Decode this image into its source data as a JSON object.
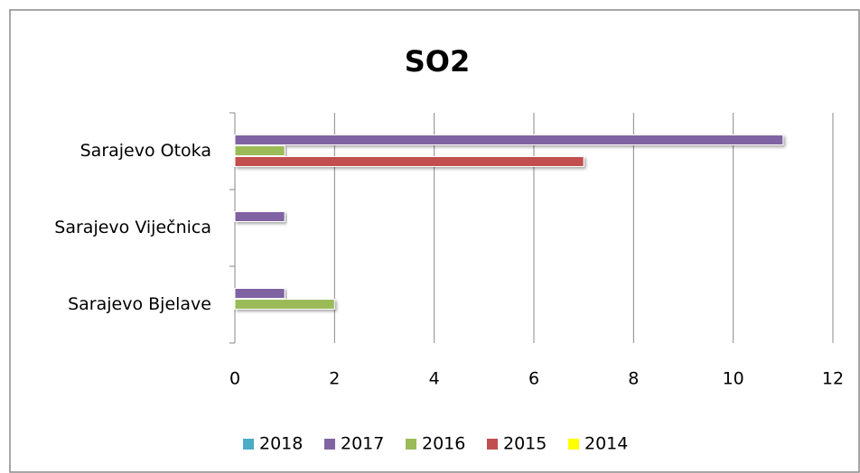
{
  "chart_data": {
    "type": "bar",
    "orientation": "horizontal",
    "title": "SO2",
    "categories": [
      "Sarajevo Otoka",
      "Sarajevo Viječnica",
      "Sarajevo Bjelave"
    ],
    "series": [
      {
        "name": "2018",
        "color": "#4bacc6",
        "values": [
          null,
          null,
          null
        ]
      },
      {
        "name": "2017",
        "color": "#8064a2",
        "values": [
          11,
          1,
          1
        ]
      },
      {
        "name": "2016",
        "color": "#9bbb59",
        "values": [
          1,
          null,
          2
        ]
      },
      {
        "name": "2015",
        "color": "#c0504d",
        "values": [
          7,
          null,
          null
        ]
      },
      {
        "name": "2014",
        "color": "#ffff00",
        "values": [
          null,
          null,
          null
        ]
      }
    ],
    "xlim": [
      0,
      12
    ],
    "xticks": [
      0,
      2,
      4,
      6,
      8,
      10,
      12
    ],
    "grid": true,
    "legend": "bottom"
  }
}
